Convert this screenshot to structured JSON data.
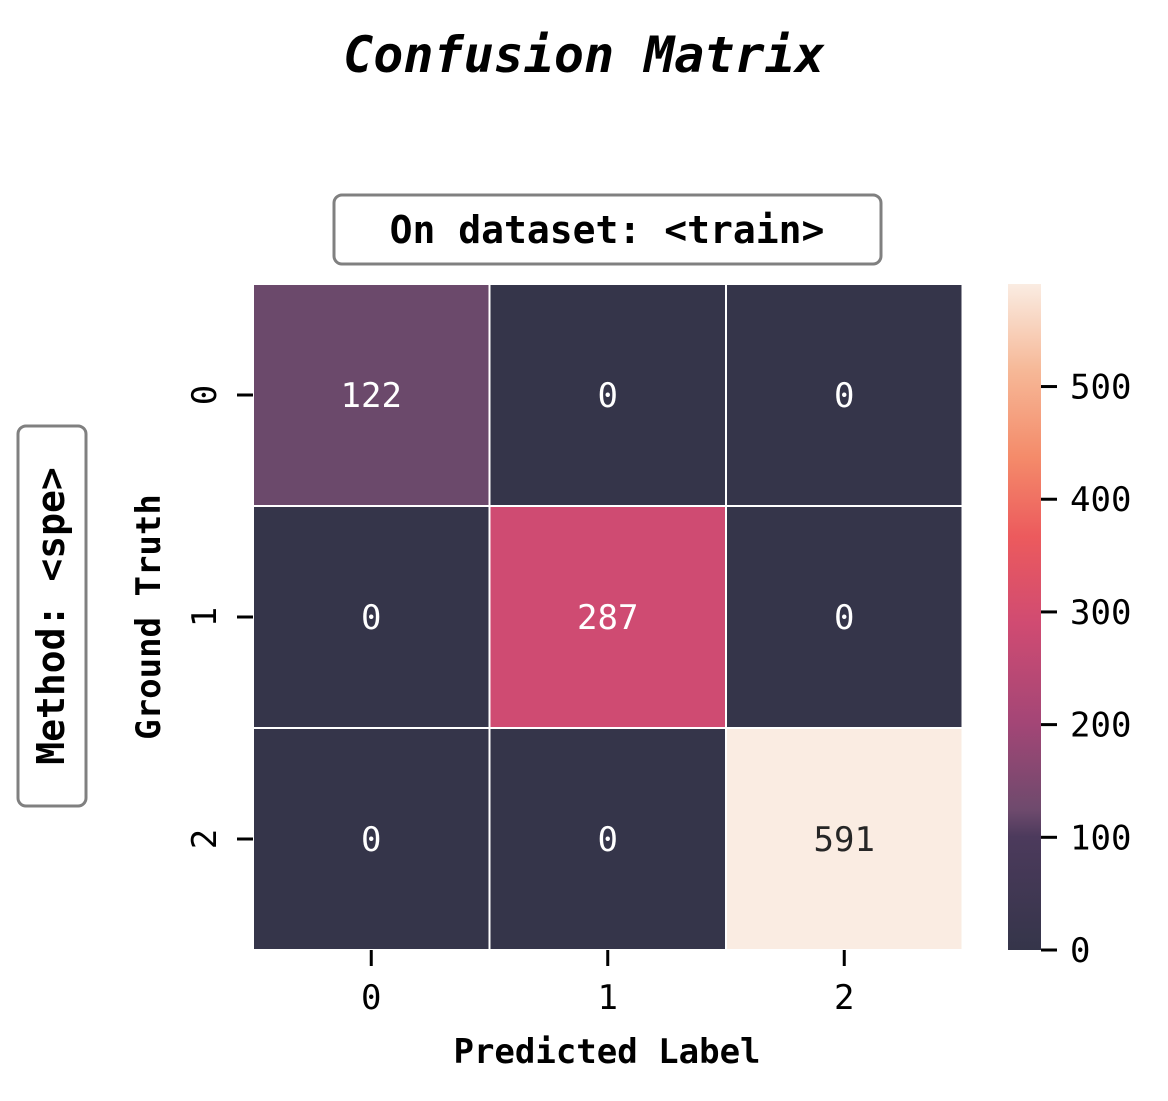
{
  "chart_data": {
    "type": "heatmap",
    "title": "Confusion Matrix",
    "subtitle": "On dataset: <train>",
    "side_label": "Method: <spe>",
    "xlabel": "Predicted Label",
    "ylabel": "Ground Truth",
    "x_categories": [
      "0",
      "1",
      "2"
    ],
    "y_categories": [
      "0",
      "1",
      "2"
    ],
    "values": [
      [
        122,
        0,
        0
      ],
      [
        0,
        287,
        0
      ],
      [
        0,
        0,
        591
      ]
    ],
    "colorbar": {
      "min": 0,
      "max": 591,
      "ticks": [
        "0",
        "100",
        "200",
        "300",
        "400",
        "500"
      ],
      "colormap": "rocket"
    },
    "grid_line_color": "#ffffff"
  }
}
